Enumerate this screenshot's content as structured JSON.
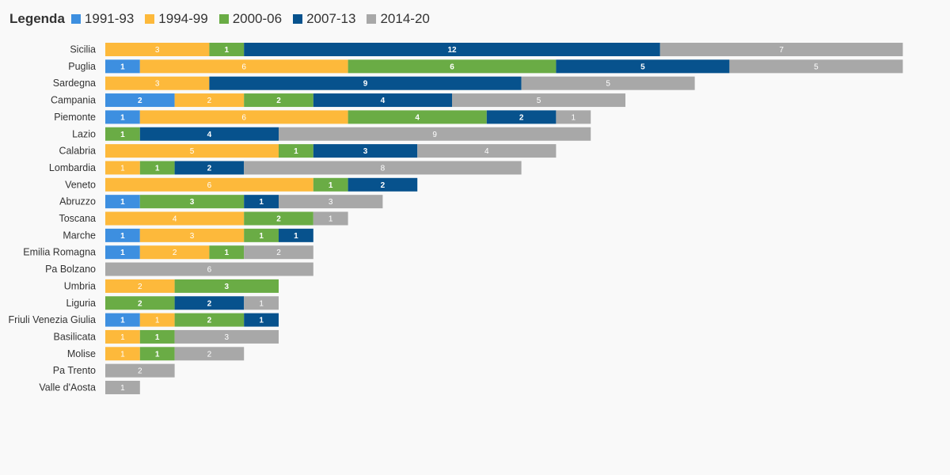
{
  "chart_data": {
    "type": "bar",
    "orientation": "horizontal",
    "stacked": true,
    "legend_title": "Legenda",
    "legend_position": "top-left",
    "grid": false,
    "xlim": [
      0,
      23
    ],
    "categories": [
      "Sicilia",
      "Puglia",
      "Sardegna",
      "Campania",
      "Piemonte",
      "Lazio",
      "Calabria",
      "Lombardia",
      "Veneto",
      "Abruzzo",
      "Toscana",
      "Marche",
      "Emilia Romagna",
      "Pa Bolzano",
      "Umbria",
      "Liguria",
      "Friuli Venezia Giulia",
      "Basilicata",
      "Molise",
      "Pa Trento",
      "Valle d'Aosta"
    ],
    "series": [
      {
        "name": "1991-93",
        "color": "#3d8fe0",
        "label_style": "dark",
        "values": [
          0,
          1,
          0,
          2,
          1,
          0,
          0,
          0,
          0,
          1,
          0,
          1,
          1,
          0,
          0,
          0,
          1,
          0,
          0,
          0,
          0
        ]
      },
      {
        "name": "1994-99",
        "color": "#fdb93b",
        "label_style": "light",
        "values": [
          3,
          6,
          3,
          2,
          6,
          0,
          5,
          1,
          6,
          0,
          4,
          3,
          2,
          0,
          2,
          0,
          1,
          1,
          1,
          0,
          0
        ]
      },
      {
        "name": "2000-06",
        "color": "#6aac45",
        "label_style": "dark",
        "values": [
          1,
          6,
          0,
          2,
          4,
          1,
          1,
          1,
          1,
          3,
          2,
          1,
          1,
          0,
          3,
          2,
          2,
          1,
          1,
          0,
          0
        ]
      },
      {
        "name": "2007-13",
        "color": "#07528d",
        "label_style": "dark",
        "values": [
          12,
          5,
          9,
          4,
          2,
          4,
          3,
          2,
          2,
          1,
          0,
          1,
          0,
          0,
          0,
          2,
          1,
          0,
          0,
          0,
          0
        ]
      },
      {
        "name": "2014-20",
        "color": "#a8a8a8",
        "label_style": "light",
        "values": [
          7,
          5,
          5,
          5,
          1,
          9,
          4,
          8,
          0,
          3,
          1,
          0,
          2,
          6,
          0,
          1,
          0,
          3,
          2,
          2,
          1
        ]
      }
    ]
  }
}
